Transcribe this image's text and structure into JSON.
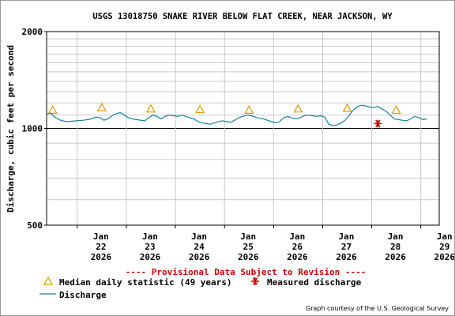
{
  "chart_data": {
    "type": "line",
    "title": "USGS 13018750 SNAKE RIVER BELOW FLAT CREEK, NEAR JACKSON, WY",
    "ylabel": "Discharge, cubic feet per second",
    "xlabel": "",
    "y_scale": "log",
    "ylim": [
      500,
      2000
    ],
    "y_ticks": [
      500,
      1000,
      2000
    ],
    "y_tick_labels": [
      "500",
      "1000",
      "2000"
    ],
    "xlim": [
      "2026-01-21 09:00",
      "2026-01-29 09:00"
    ],
    "x_ticks": [
      {
        "date": "2026-01-22",
        "label": [
          "Jan",
          "22",
          "2026"
        ]
      },
      {
        "date": "2026-01-23",
        "label": [
          "Jan",
          "23",
          "2026"
        ]
      },
      {
        "date": "2026-01-24",
        "label": [
          "Jan",
          "24",
          "2026"
        ]
      },
      {
        "date": "2026-01-25",
        "label": [
          "Jan",
          "25",
          "2026"
        ]
      },
      {
        "date": "2026-01-26",
        "label": [
          "Jan",
          "26",
          "2026"
        ]
      },
      {
        "date": "2026-01-27",
        "label": [
          "Jan",
          "27",
          "2026"
        ]
      },
      {
        "date": "2026-01-28",
        "label": [
          "Jan",
          "28",
          "2026"
        ]
      },
      {
        "date": "2026-01-29",
        "label": [
          "Jan",
          "29",
          "2026"
        ]
      }
    ],
    "grid": true,
    "annotation": "---- Provisional Data Subject to Revision ----",
    "series": [
      {
        "name": "Discharge",
        "type": "line",
        "color": "#1a7fa0",
        "x": [
          "2026-01-21 09:00",
          "2026-01-21 11:00",
          "2026-01-21 13:00",
          "2026-01-21 15:00",
          "2026-01-21 17:00",
          "2026-01-21 19:00",
          "2026-01-21 21:00",
          "2026-01-21 23:00",
          "2026-01-22 01:00",
          "2026-01-22 03:00",
          "2026-01-22 05:00",
          "2026-01-22 07:00",
          "2026-01-22 09:00",
          "2026-01-22 11:00",
          "2026-01-22 13:00",
          "2026-01-22 15:00",
          "2026-01-22 17:00",
          "2026-01-22 19:00",
          "2026-01-22 21:00",
          "2026-01-22 23:00",
          "2026-01-23 01:00",
          "2026-01-23 03:00",
          "2026-01-23 05:00",
          "2026-01-23 07:00",
          "2026-01-23 09:00",
          "2026-01-23 11:00",
          "2026-01-23 13:00",
          "2026-01-23 15:00",
          "2026-01-23 17:00",
          "2026-01-23 19:00",
          "2026-01-23 21:00",
          "2026-01-23 23:00",
          "2026-01-24 01:00",
          "2026-01-24 03:00",
          "2026-01-24 05:00",
          "2026-01-24 07:00",
          "2026-01-24 09:00",
          "2026-01-24 11:00",
          "2026-01-24 13:00",
          "2026-01-24 15:00",
          "2026-01-24 17:00",
          "2026-01-24 19:00",
          "2026-01-24 21:00",
          "2026-01-24 23:00",
          "2026-01-25 01:00",
          "2026-01-25 03:00",
          "2026-01-25 05:00",
          "2026-01-25 07:00",
          "2026-01-25 09:00",
          "2026-01-25 11:00",
          "2026-01-25 13:00",
          "2026-01-25 15:00",
          "2026-01-25 17:00",
          "2026-01-25 19:00",
          "2026-01-25 21:00",
          "2026-01-25 23:00",
          "2026-01-26 01:00",
          "2026-01-26 03:00",
          "2026-01-26 05:00",
          "2026-01-26 07:00",
          "2026-01-26 09:00",
          "2026-01-26 11:00",
          "2026-01-26 13:00",
          "2026-01-26 15:00",
          "2026-01-26 17:00",
          "2026-01-26 19:00",
          "2026-01-26 21:00",
          "2026-01-26 23:00",
          "2026-01-27 01:00",
          "2026-01-27 03:00",
          "2026-01-27 05:00",
          "2026-01-27 07:00",
          "2026-01-27 09:00",
          "2026-01-27 11:00",
          "2026-01-27 13:00",
          "2026-01-27 15:00",
          "2026-01-27 17:00",
          "2026-01-27 19:00",
          "2026-01-27 21:00",
          "2026-01-27 23:00",
          "2026-01-28 01:00",
          "2026-01-28 03:00",
          "2026-01-28 05:00",
          "2026-01-28 07:00",
          "2026-01-28 09:00",
          "2026-01-28 11:00",
          "2026-01-28 13:00",
          "2026-01-28 15:00",
          "2026-01-28 17:00",
          "2026-01-28 19:00",
          "2026-01-28 21:00",
          "2026-01-28 23:00",
          "2026-01-29 01:00",
          "2026-01-29 03:00"
        ],
        "y": [
          1110,
          1115,
          1085,
          1065,
          1055,
          1050,
          1052,
          1055,
          1058,
          1060,
          1065,
          1070,
          1085,
          1080,
          1060,
          1070,
          1095,
          1110,
          1120,
          1100,
          1080,
          1070,
          1065,
          1060,
          1055,
          1080,
          1100,
          1090,
          1070,
          1090,
          1100,
          1095,
          1090,
          1100,
          1090,
          1080,
          1070,
          1050,
          1040,
          1035,
          1030,
          1040,
          1050,
          1055,
          1050,
          1045,
          1060,
          1080,
          1090,
          1100,
          1095,
          1085,
          1075,
          1070,
          1060,
          1050,
          1040,
          1050,
          1080,
          1090,
          1075,
          1070,
          1080,
          1095,
          1100,
          1095,
          1090,
          1095,
          1085,
          1030,
          1020,
          1025,
          1040,
          1060,
          1100,
          1140,
          1170,
          1180,
          1175,
          1165,
          1160,
          1170,
          1150,
          1130,
          1100,
          1070,
          1065,
          1060,
          1055,
          1070,
          1090,
          1080,
          1065,
          1070
        ]
      },
      {
        "name": "Median daily statistic (49 years)",
        "type": "scatter",
        "marker": "triangle",
        "color": "#e39a00",
        "x": [
          "2026-01-21 12:00",
          "2026-01-22 12:00",
          "2026-01-23 12:00",
          "2026-01-24 12:00",
          "2026-01-25 12:00",
          "2026-01-26 12:00",
          "2026-01-27 12:00",
          "2026-01-28 12:00"
        ],
        "y": [
          1140,
          1160,
          1150,
          1145,
          1140,
          1150,
          1155,
          1140
        ]
      },
      {
        "name": "Measured discharge",
        "type": "scatter",
        "marker": "asterisk",
        "color": "#cc0000",
        "x": [
          "2026-01-28 03:00"
        ],
        "y": [
          1035
        ]
      }
    ],
    "legend": [
      {
        "label": "Median daily statistic (49 years)",
        "marker": "triangle",
        "color": "#e39a00"
      },
      {
        "label": "Measured discharge",
        "marker": "asterisk",
        "color": "#cc0000"
      },
      {
        "label": "Discharge",
        "marker": "line",
        "color": "#1a7fa0"
      }
    ]
  },
  "credit": "Graph courtesy of the U.S. Geological Survey"
}
